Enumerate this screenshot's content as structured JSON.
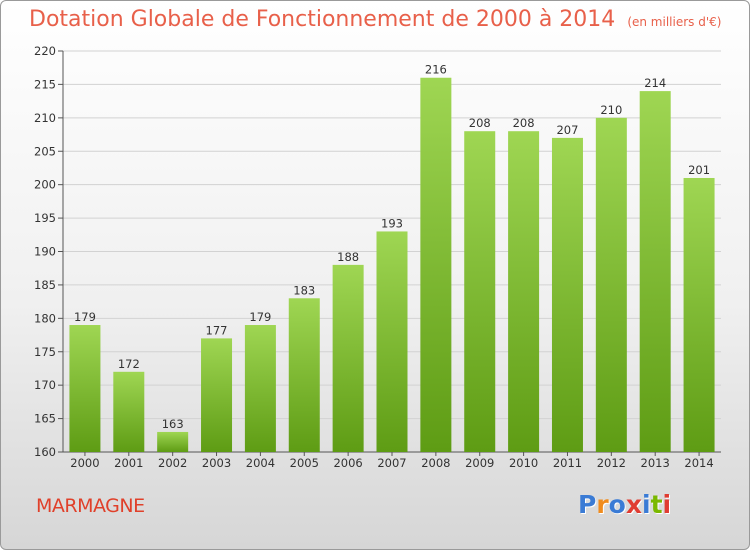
{
  "header": {
    "title": "Dotation Globale de Fonctionnement de 2000 à 2014",
    "subtitle": "(en milliers d'€)"
  },
  "footer": {
    "commune": "MARMAGNE",
    "logo_letters": [
      "P",
      "r",
      "o",
      "x",
      "i",
      "t",
      "i"
    ],
    "logo_colors": [
      "#3a7bd5",
      "#f08c1e",
      "#3a7bd5",
      "#e03c31",
      "#3a7bd5",
      "#7ab800",
      "#e03c31"
    ]
  },
  "chart_data": {
    "type": "bar",
    "title": "Dotation Globale de Fonctionnement de 2000 à 2014",
    "subtitle": "(en milliers d'€)",
    "categories": [
      "2000",
      "2001",
      "2002",
      "2003",
      "2004",
      "2005",
      "2006",
      "2007",
      "2008",
      "2009",
      "2010",
      "2011",
      "2012",
      "2013",
      "2014"
    ],
    "values": [
      179,
      172,
      163,
      177,
      179,
      183,
      188,
      193,
      216,
      208,
      208,
      207,
      210,
      214,
      201
    ],
    "ylim": [
      160,
      220
    ],
    "yticks": [
      160,
      165,
      170,
      175,
      180,
      185,
      190,
      195,
      200,
      205,
      210,
      215,
      220
    ],
    "grid": true,
    "bar_color_top": "#9fd653",
    "bar_color_bottom": "#5e9c14",
    "legend": "none"
  }
}
